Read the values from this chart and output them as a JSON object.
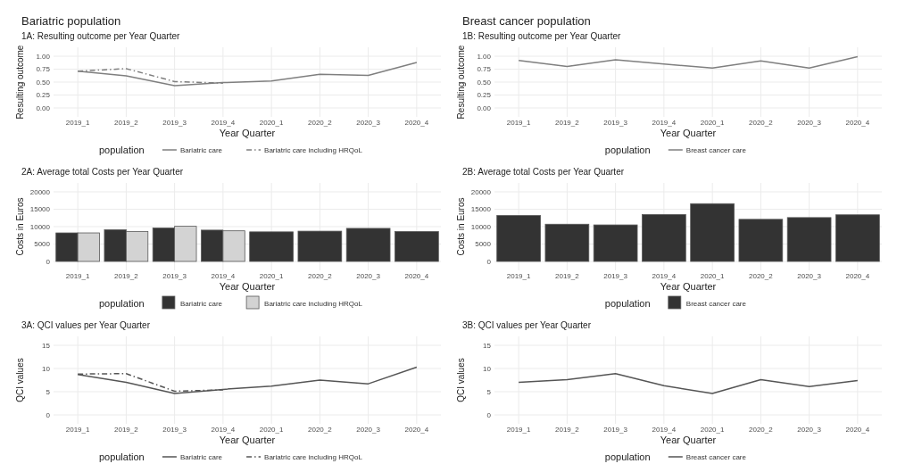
{
  "chart_data": [
    {
      "type": "line",
      "title": "Bariatric population",
      "subtitle": "1A: Resulting outcome per Year Quarter",
      "xlabel": "Year Quarter",
      "ylabel": "Resulting outcome",
      "legend_title": "population",
      "legend": "bottom",
      "grid": true,
      "categories": [
        "2019_1",
        "2019_2",
        "2019_3",
        "2019_4",
        "2020_1",
        "2020_2",
        "2020_3",
        "2020_4"
      ],
      "ylim": [
        0,
        1
      ],
      "yticks": [
        {
          "value": 0,
          "label": "0.00"
        },
        {
          "value": 0.25,
          "label": "0.25"
        },
        {
          "value": 0.5,
          "label": "0.50"
        },
        {
          "value": 0.75,
          "label": "0.75"
        },
        {
          "value": 1,
          "label": "1.00"
        }
      ],
      "series": [
        {
          "name": "Bariatric care",
          "color": "#7f7f7f",
          "line_style": "solid",
          "values": [
            0.71,
            0.62,
            0.43,
            0.49,
            0.52,
            0.65,
            0.63,
            0.88
          ]
        },
        {
          "name": "Bariatric care including HRQoL",
          "color": "#7f7f7f",
          "line_style": "dashed",
          "values": [
            0.71,
            0.76,
            0.51,
            0.48,
            null,
            null,
            null,
            null
          ]
        }
      ]
    },
    {
      "type": "line",
      "title": "Breast cancer population",
      "subtitle": "1B: Resulting outcome per Year Quarter",
      "xlabel": "Year Quarter",
      "ylabel": "Resulting outcome",
      "legend_title": "population",
      "legend": "bottom",
      "grid": true,
      "categories": [
        "2019_1",
        "2019_2",
        "2019_3",
        "2019_4",
        "2020_1",
        "2020_2",
        "2020_3",
        "2020_4"
      ],
      "ylim": [
        0,
        1
      ],
      "yticks": [
        {
          "value": 0,
          "label": "0.00"
        },
        {
          "value": 0.25,
          "label": "0.25"
        },
        {
          "value": 0.5,
          "label": "0.50"
        },
        {
          "value": 0.75,
          "label": "0.75"
        },
        {
          "value": 1,
          "label": "1.00"
        }
      ],
      "series": [
        {
          "name": "Breast cancer care",
          "color": "#7f7f7f",
          "line_style": "solid",
          "values": [
            0.92,
            0.8,
            0.93,
            0.85,
            0.77,
            0.91,
            0.77,
            0.99
          ]
        }
      ]
    },
    {
      "type": "bar",
      "title": "2A: Average total Costs per Year Quarter",
      "xlabel": "Year Quarter",
      "ylabel": "Costs in Euros",
      "legend_title": "population",
      "legend": "bottom",
      "grid": true,
      "categories": [
        "2019_1",
        "2019_2",
        "2019_3",
        "2019_4",
        "2020_1",
        "2020_2",
        "2020_3",
        "2020_4"
      ],
      "ylim": [
        0,
        20000
      ],
      "yticks": [
        0,
        5000,
        10000,
        15000,
        20000
      ],
      "series": [
        {
          "name": "Bariatric care",
          "color": "#333333",
          "values": [
            8200,
            9100,
            9600,
            9000,
            8500,
            8700,
            9500,
            8600
          ]
        },
        {
          "name": "Bariatric care including HRQoL",
          "color": "#d3d3d3",
          "values": [
            8200,
            8600,
            10100,
            8800,
            null,
            null,
            null,
            null
          ]
        }
      ]
    },
    {
      "type": "bar",
      "title": "2B: Average total Costs per Year Quarter",
      "xlabel": "Year Quarter",
      "ylabel": "Costs in Euros",
      "legend_title": "population",
      "legend": "bottom",
      "grid": true,
      "categories": [
        "2019_1",
        "2019_2",
        "2019_3",
        "2019_4",
        "2020_1",
        "2020_2",
        "2020_3",
        "2020_4"
      ],
      "ylim": [
        0,
        20000
      ],
      "yticks": [
        0,
        5000,
        10000,
        15000,
        20000
      ],
      "series": [
        {
          "name": "Breast cancer care",
          "color": "#333333",
          "values": [
            13200,
            10700,
            10500,
            13500,
            16600,
            12100,
            12600,
            13400
          ]
        }
      ]
    },
    {
      "type": "line",
      "title": "3A: QCI values per Year Quarter",
      "xlabel": "Year Quarter",
      "ylabel": "QCI values",
      "legend_title": "population",
      "legend": "bottom",
      "grid": true,
      "categories": [
        "2019_1",
        "2019_2",
        "2019_3",
        "2019_4",
        "2020_1",
        "2020_2",
        "2020_3",
        "2020_4"
      ],
      "ylim": [
        0,
        15
      ],
      "yticks": [
        0,
        5,
        10,
        15
      ],
      "series": [
        {
          "name": "Bariatric care",
          "color": "#555555",
          "line_style": "solid",
          "values": [
            8.7,
            7.0,
            4.6,
            5.5,
            6.2,
            7.5,
            6.7,
            10.3
          ]
        },
        {
          "name": "Bariatric care including HRQoL",
          "color": "#555555",
          "line_style": "dashed",
          "values": [
            8.8,
            8.9,
            5.1,
            5.4,
            null,
            null,
            null,
            null
          ]
        }
      ]
    },
    {
      "type": "line",
      "title": "3B: QCI values per Year Quarter",
      "xlabel": "Year Quarter",
      "ylabel": "QCI values",
      "legend_title": "population",
      "legend": "bottom",
      "grid": true,
      "categories": [
        "2019_1",
        "2019_2",
        "2019_3",
        "2019_4",
        "2020_1",
        "2020_2",
        "2020_3",
        "2020_4"
      ],
      "ylim": [
        0,
        15
      ],
      "yticks": [
        0,
        5,
        10,
        15
      ],
      "series": [
        {
          "name": "Breast cancer care",
          "color": "#555555",
          "line_style": "solid",
          "values": [
            7.0,
            7.6,
            8.9,
            6.3,
            4.6,
            7.6,
            6.1,
            7.4
          ]
        }
      ]
    }
  ]
}
